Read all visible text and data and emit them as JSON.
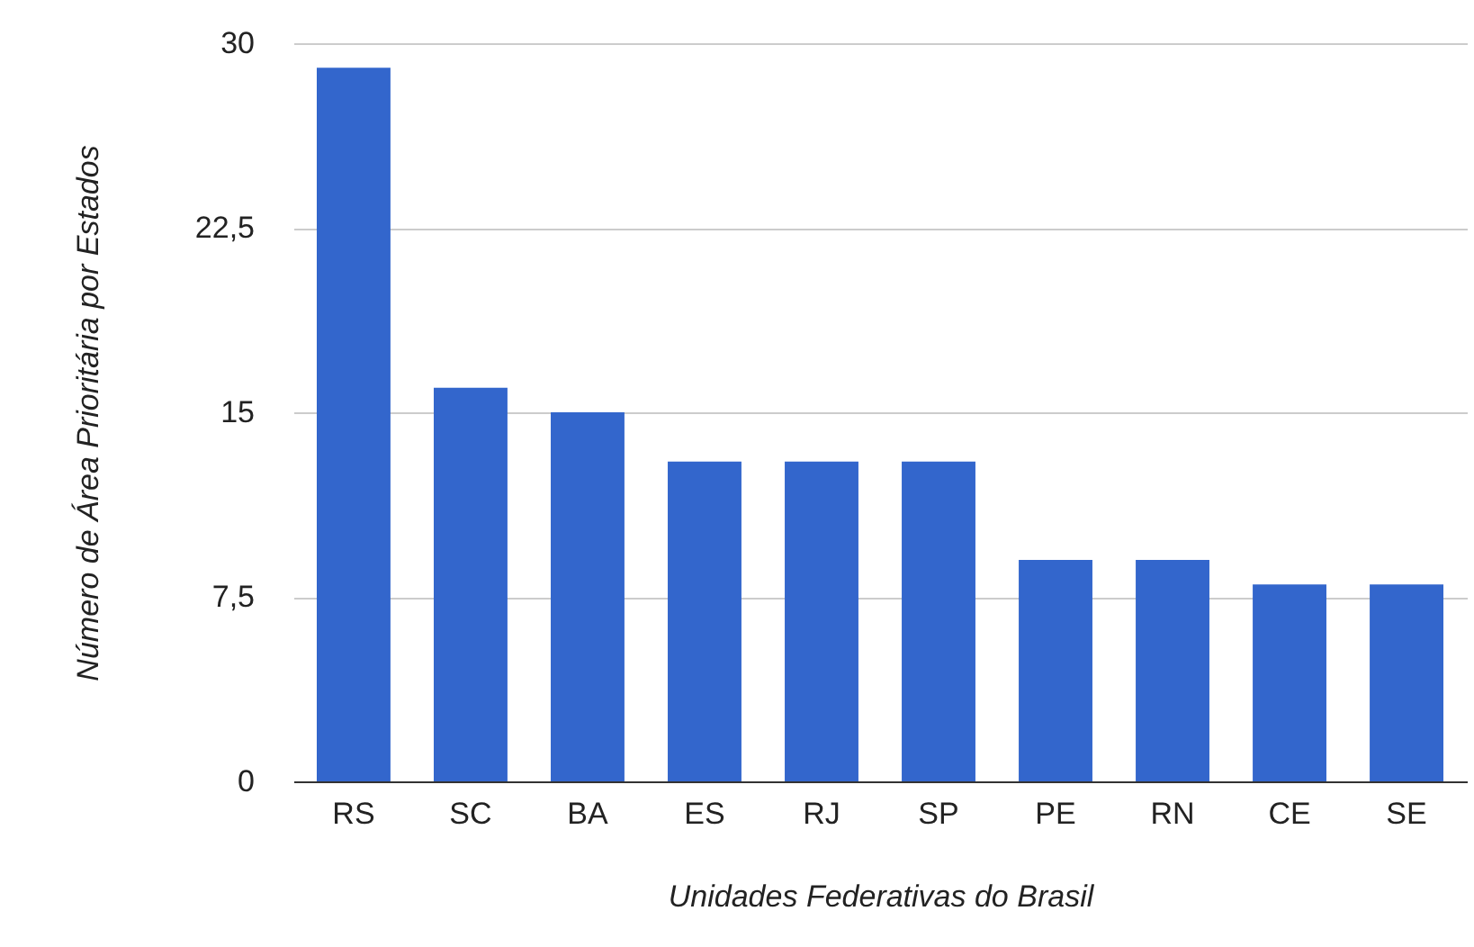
{
  "chart_data": {
    "type": "bar",
    "xlabel": "Unidades Federativas do Brasil",
    "ylabel": "Número de Área Prioritária por Estados",
    "categories": [
      "RS",
      "SC",
      "BA",
      "ES",
      "RJ",
      "SP",
      "PE",
      "RN",
      "CE",
      "SE"
    ],
    "values": [
      29,
      16,
      15,
      13,
      13,
      13,
      9,
      9,
      8,
      8
    ],
    "color": "#3366cc",
    "ylim": [
      0,
      30
    ],
    "yticks": [
      0,
      {
        "value": 7.5,
        "label": "7,5"
      },
      15,
      {
        "value": 22.5,
        "label": "22,5"
      },
      30
    ],
    "grid": "y"
  }
}
